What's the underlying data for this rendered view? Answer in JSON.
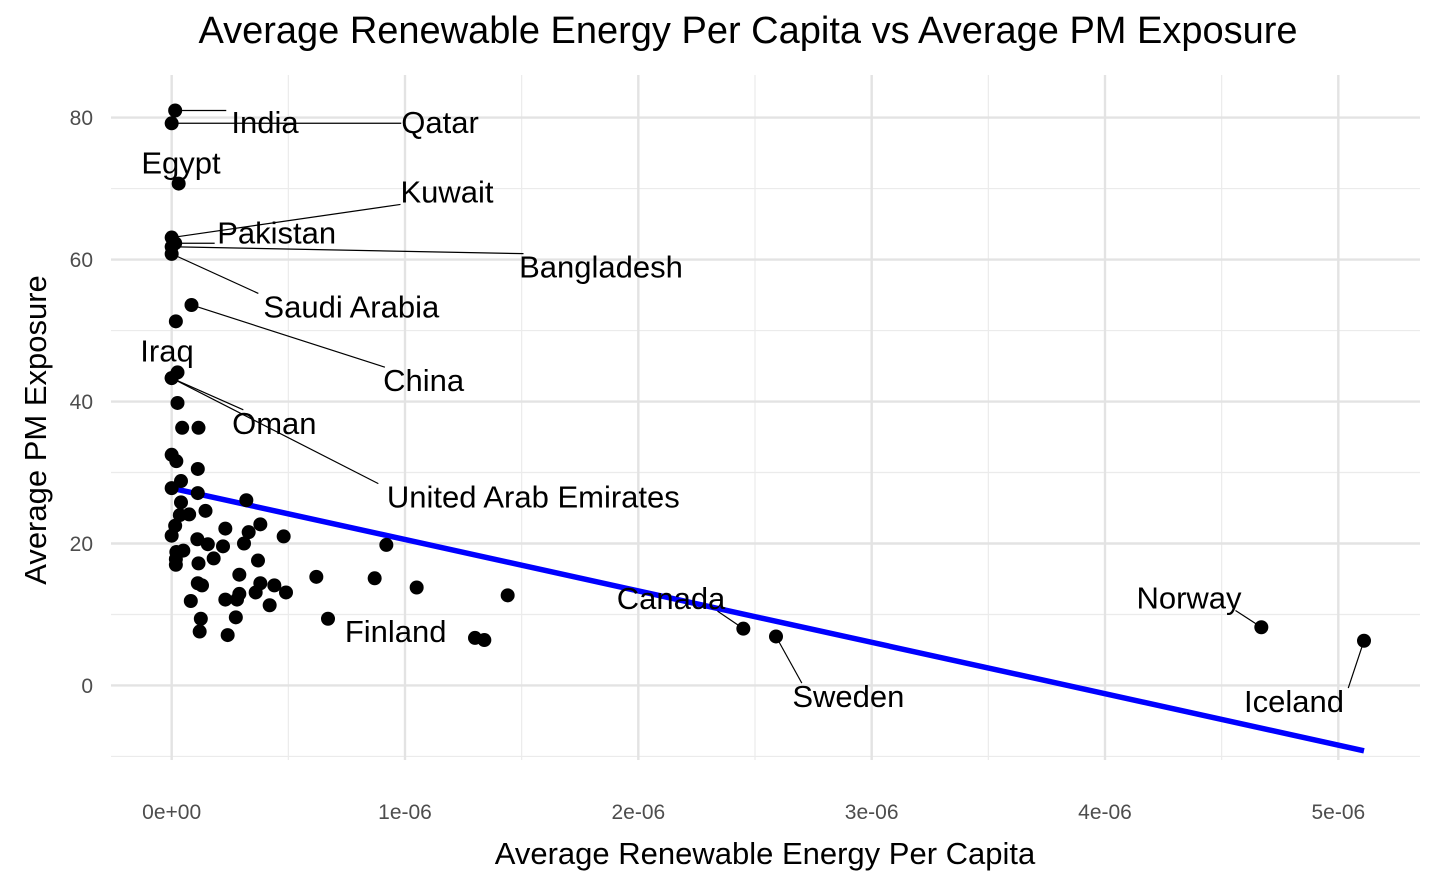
{
  "chart_data": {
    "type": "scatter",
    "title": "Average Renewable Energy Per Capita vs Average PM Exposure",
    "xlabel": "Average Renewable Energy Per Capita",
    "ylabel": "Average PM Exposure",
    "xlim": [
      -2.6e-07,
      5.35e-06
    ],
    "ylim": [
      -10.5,
      86
    ],
    "x_ticks": [
      0,
      1e-06,
      2e-06,
      3e-06,
      4e-06,
      5e-06
    ],
    "x_tick_labels": [
      "0e+00",
      "1e-06",
      "2e-06",
      "3e-06",
      "4e-06",
      "5e-06"
    ],
    "y_ticks": [
      0,
      20,
      40,
      60,
      80
    ],
    "y_tick_labels": [
      "0",
      "20",
      "40",
      "60",
      "80"
    ],
    "grid": true,
    "legend": "none",
    "points": [
      {
        "x": 1.5e-08,
        "y": 81.0,
        "name": "India"
      },
      {
        "x": 0,
        "y": 79.2,
        "name": "Qatar"
      },
      {
        "x": 3e-08,
        "y": 70.7,
        "name": "Egypt"
      },
      {
        "x": 0,
        "y": 63.1,
        "name": "Kuwait"
      },
      {
        "x": 1.5e-08,
        "y": 62.3,
        "name": "Pakistan"
      },
      {
        "x": 0,
        "y": 61.8,
        "name": "Bangladesh"
      },
      {
        "x": 0,
        "y": 60.8,
        "name": "Saudi Arabia"
      },
      {
        "x": 8.5e-08,
        "y": 53.6,
        "name": "China"
      },
      {
        "x": 1.8e-08,
        "y": 51.3
      },
      {
        "x": 2.5e-08,
        "y": 44.1,
        "name": "Iraq"
      },
      {
        "x": 0,
        "y": 43.3,
        "name": "Oman"
      },
      {
        "x": 0,
        "y": 43.3,
        "name": "United Arab Emirates"
      },
      {
        "x": 2.5e-08,
        "y": 39.8
      },
      {
        "x": 4.5e-08,
        "y": 36.3
      },
      {
        "x": 1.15e-07,
        "y": 36.3
      },
      {
        "x": 0,
        "y": 32.5
      },
      {
        "x": 2e-08,
        "y": 31.6
      },
      {
        "x": 1.12e-07,
        "y": 30.5
      },
      {
        "x": 4e-08,
        "y": 28.8
      },
      {
        "x": 0,
        "y": 27.8
      },
      {
        "x": 1.12e-07,
        "y": 27.1
      },
      {
        "x": 3.2e-07,
        "y": 26.1
      },
      {
        "x": 4e-08,
        "y": 25.8
      },
      {
        "x": 1.45e-07,
        "y": 24.6
      },
      {
        "x": 7.5e-08,
        "y": 24.1
      },
      {
        "x": 3.5e-08,
        "y": 24.0
      },
      {
        "x": 1.5e-08,
        "y": 22.5
      },
      {
        "x": 3.8e-07,
        "y": 22.7
      },
      {
        "x": 2.3e-07,
        "y": 22.1
      },
      {
        "x": 3.3e-07,
        "y": 21.6
      },
      {
        "x": 0,
        "y": 21.1
      },
      {
        "x": 4.8e-07,
        "y": 21.0
      },
      {
        "x": 1.1e-07,
        "y": 20.6
      },
      {
        "x": 3.1e-07,
        "y": 20.0
      },
      {
        "x": 1.55e-07,
        "y": 19.9
      },
      {
        "x": 9.2e-07,
        "y": 19.8
      },
      {
        "x": 2.2e-07,
        "y": 19.6
      },
      {
        "x": 5e-08,
        "y": 19.0
      },
      {
        "x": 2e-08,
        "y": 18.8
      },
      {
        "x": 1.8e-08,
        "y": 17.8
      },
      {
        "x": 3.7e-07,
        "y": 17.6
      },
      {
        "x": 1.8e-07,
        "y": 17.9
      },
      {
        "x": 1.15e-07,
        "y": 17.2
      },
      {
        "x": 1.8e-08,
        "y": 17.0
      },
      {
        "x": 2.9e-07,
        "y": 15.6
      },
      {
        "x": 6.2e-07,
        "y": 15.3
      },
      {
        "x": 8.7e-07,
        "y": 15.1
      },
      {
        "x": 1.12e-07,
        "y": 14.4
      },
      {
        "x": 1.3e-07,
        "y": 14.1
      },
      {
        "x": 3.8e-07,
        "y": 14.4
      },
      {
        "x": 4.4e-07,
        "y": 14.1
      },
      {
        "x": 1.05e-06,
        "y": 13.8
      },
      {
        "x": 2.9e-07,
        "y": 12.9
      },
      {
        "x": 3.6e-07,
        "y": 13.1
      },
      {
        "x": 4.9e-07,
        "y": 13.1
      },
      {
        "x": 1.44e-06,
        "y": 12.7
      },
      {
        "x": 2.3e-07,
        "y": 12.1
      },
      {
        "x": 2.8e-07,
        "y": 12.1
      },
      {
        "x": 8.2e-08,
        "y": 11.9
      },
      {
        "x": 4.2e-07,
        "y": 11.3
      },
      {
        "x": 1.25e-07,
        "y": 9.4
      },
      {
        "x": 2.75e-07,
        "y": 9.6
      },
      {
        "x": 6.7e-07,
        "y": 9.4,
        "name": "Finland"
      },
      {
        "x": 1.2e-07,
        "y": 7.6
      },
      {
        "x": 2.4e-07,
        "y": 7.1
      },
      {
        "x": 1.3e-06,
        "y": 6.7
      },
      {
        "x": 1.34e-06,
        "y": 6.4
      },
      {
        "x": 2.45e-06,
        "y": 8.0,
        "name": "Canada"
      },
      {
        "x": 2.59e-06,
        "y": 6.9,
        "name": "Sweden"
      },
      {
        "x": 4.67e-06,
        "y": 8.2,
        "name": "Norway"
      },
      {
        "x": 5.11e-06,
        "y": 6.3,
        "name": "Iceland"
      }
    ],
    "trend_line": {
      "color": "#0000ff",
      "x": [
        0,
        5.11e-06
      ],
      "y": [
        27.8,
        -9.2
      ]
    },
    "annotations": [
      {
        "text": "India",
        "pointIndex": 0,
        "label_x": 4e-07,
        "label_y": 79.4,
        "anchor": "middle"
      },
      {
        "text": "Qatar",
        "pointIndex": 1,
        "label_x": 1.15e-06,
        "label_y": 79.4,
        "anchor": "middle"
      },
      {
        "text": "Egypt",
        "pointIndex": 2,
        "label_x": 4e-08,
        "label_y": 73.7,
        "anchor": "middle",
        "noLine": true
      },
      {
        "text": "Kuwait",
        "pointIndex": 3,
        "label_x": 1.18e-06,
        "label_y": 69.6,
        "anchor": "middle"
      },
      {
        "text": "Pakistan",
        "pointIndex": 4,
        "label_x": 4.5e-07,
        "label_y": 63.8,
        "anchor": "middle"
      },
      {
        "text": "Bangladesh",
        "pointIndex": 5,
        "label_x": 1.84e-06,
        "label_y": 59.0,
        "anchor": "middle"
      },
      {
        "text": "Saudi Arabia",
        "pointIndex": 6,
        "label_x": 7.7e-07,
        "label_y": 53.4,
        "anchor": "middle"
      },
      {
        "text": "China",
        "pointIndex": 7,
        "label_x": 1.08e-06,
        "label_y": 43.0,
        "anchor": "middle"
      },
      {
        "text": "Iraq",
        "pointIndex": 9,
        "label_x": -2e-08,
        "label_y": 47.2,
        "anchor": "middle",
        "noLine": true
      },
      {
        "text": "Oman",
        "pointIndex": 10,
        "label_x": 4.4e-07,
        "label_y": 37.0,
        "anchor": "middle"
      },
      {
        "text": "United Arab Emirates",
        "pointIndex": 11,
        "label_x": 1.55e-06,
        "label_y": 26.6,
        "anchor": "middle"
      },
      {
        "text": "Finland",
        "pointIndex": 62,
        "label_x": 9.6e-07,
        "label_y": 7.7,
        "anchor": "middle",
        "noLine": true
      },
      {
        "text": "Canada",
        "pointIndex": 67,
        "label_x": 2.14e-06,
        "label_y": 12.3,
        "anchor": "middle"
      },
      {
        "text": "Sweden",
        "pointIndex": 68,
        "label_x": 2.9e-06,
        "label_y": -1.5,
        "anchor": "middle"
      },
      {
        "text": "Norway",
        "pointIndex": 69,
        "label_x": 4.36e-06,
        "label_y": 12.4,
        "anchor": "middle"
      },
      {
        "text": "Iceland",
        "pointIndex": 70,
        "label_x": 4.81e-06,
        "label_y": -2.2,
        "anchor": "middle"
      }
    ]
  }
}
